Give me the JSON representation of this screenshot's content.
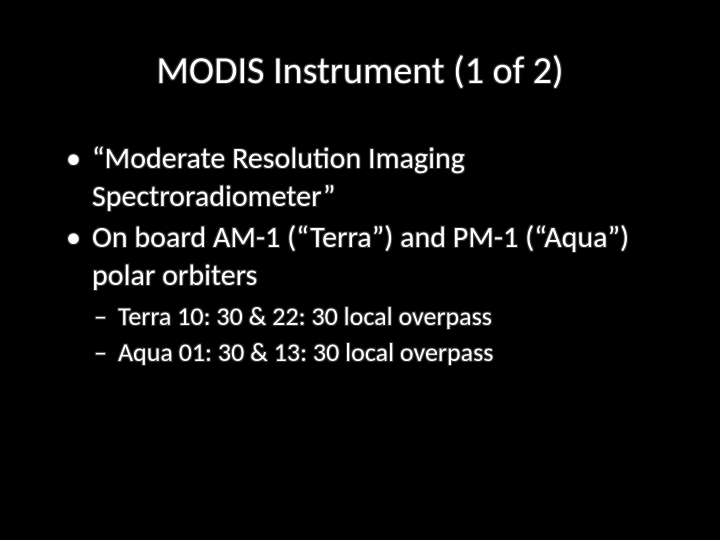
{
  "slide": {
    "background_color": "#000000",
    "text_color": "#ffffff",
    "title": "MODIS Instrument (1 of 2)",
    "title_fontsize": 38,
    "body_fontsize_l1": 30,
    "body_fontsize_l2": 26,
    "bullets": [
      {
        "text": "“Moderate Resolution Imaging Spectroradiometer”",
        "children": []
      },
      {
        "text": "On board AM-1 (“Terra”) and PM-1 (“Aqua”) polar orbiters",
        "children": [
          {
            "text": "Terra 10: 30 & 22: 30 local overpass"
          },
          {
            "text": "Aqua 01: 30 & 13: 30 local overpass"
          }
        ]
      }
    ]
  }
}
